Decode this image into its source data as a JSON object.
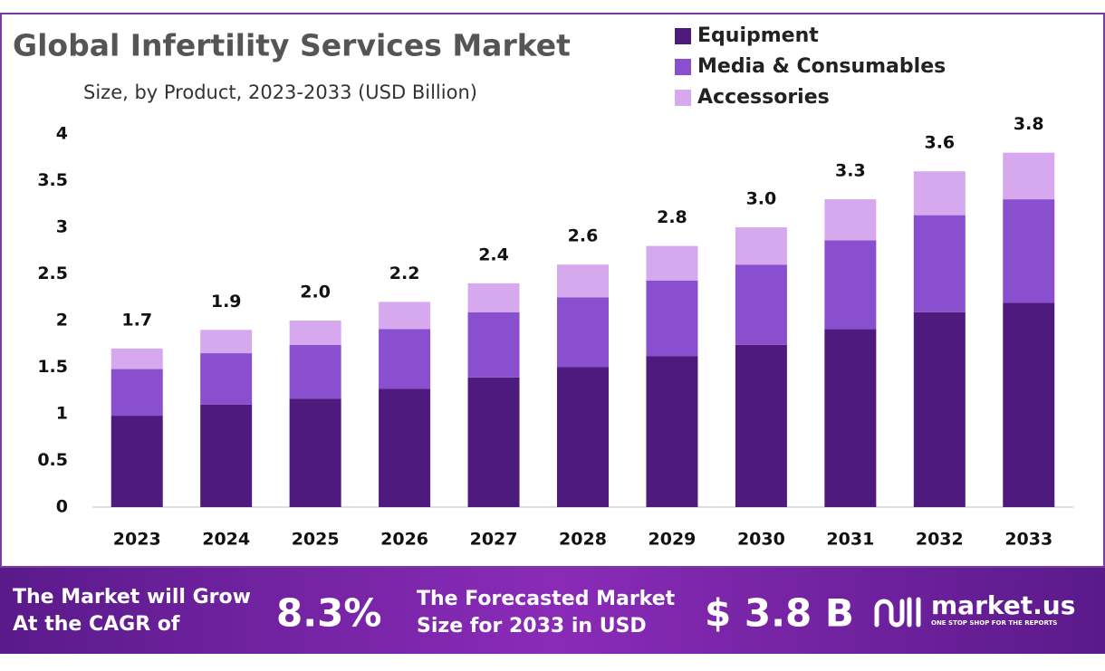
{
  "chart_data": {
    "type": "stacked-bar",
    "title": "Global Infertility Services Market",
    "subtitle": "Size, by Product, 2023-2033 (USD Billion)",
    "categories": [
      "2023",
      "2024",
      "2025",
      "2026",
      "2027",
      "2028",
      "2029",
      "2030",
      "2031",
      "2032",
      "2033"
    ],
    "series": [
      {
        "name": "Equipment",
        "color": "#4e1a7e",
        "values": [
          0.98,
          1.1,
          1.16,
          1.27,
          1.39,
          1.5,
          1.62,
          1.74,
          1.91,
          2.09,
          2.19
        ]
      },
      {
        "name": "Media & Consumables",
        "color": "#8a4fcf",
        "values": [
          0.5,
          0.55,
          0.58,
          0.64,
          0.7,
          0.75,
          0.81,
          0.86,
          0.95,
          1.04,
          1.11
        ]
      },
      {
        "name": "Accessories",
        "color": "#d6a9ee",
        "values": [
          0.22,
          0.25,
          0.26,
          0.29,
          0.31,
          0.35,
          0.37,
          0.4,
          0.44,
          0.47,
          0.5
        ]
      }
    ],
    "totals": {
      "values": [
        1.7,
        1.9,
        2.0,
        2.2,
        2.4,
        2.6,
        2.8,
        3.0,
        3.3,
        3.6,
        3.8
      ],
      "value_labels": [
        "1.7",
        "1.9",
        "2.0",
        "2.2",
        "2.4",
        "2.6",
        "2.8",
        "3.0",
        "3.3",
        "3.6",
        "3.8"
      ]
    },
    "ylim": [
      0,
      4
    ],
    "yticks": [
      0,
      0.5,
      1,
      1.5,
      2,
      2.5,
      3,
      3.5,
      4
    ],
    "grid": false,
    "legend": "top-right"
  },
  "footer": {
    "cagr_text": [
      "The Market will Grow",
      "At the CAGR of"
    ],
    "cagr_value": "8.3%",
    "forecast_text": [
      "The Forecasted Market",
      "Size for 2033 in USD"
    ],
    "forecast_value": "$ 3.8 B",
    "brand": "market.us",
    "tagline": "ONE STOP SHOP FOR THE REPORTS"
  }
}
